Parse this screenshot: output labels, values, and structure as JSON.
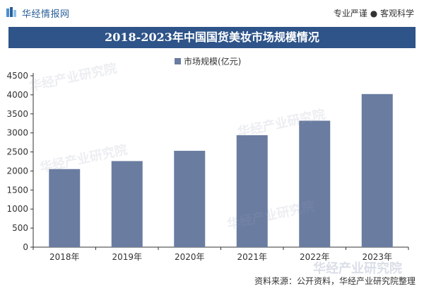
{
  "header": {
    "brand": "华经情报网",
    "slogan": "专业严谨 ● 客观科学"
  },
  "chart_data": {
    "type": "bar",
    "title": "2018-2023年中国国货美妆市场规模情况",
    "categories": [
      "2018年",
      "2019年",
      "2020年",
      "2021年",
      "2022年",
      "2023年"
    ],
    "series": [
      {
        "name": "市场规模(亿元)",
        "values": [
          2050,
          2260,
          2530,
          2940,
          3320,
          4020
        ]
      }
    ],
    "ylim": [
      0,
      4500
    ],
    "yticks": [
      0,
      500,
      1000,
      1500,
      2000,
      2500,
      3000,
      3500,
      4000,
      4500
    ],
    "grid": false,
    "legend": "top-center",
    "bar_color": "#6a7ca0"
  },
  "watermark": "华经产业研究院",
  "source": "资料来源：公开资料，华经产业研究院整理"
}
